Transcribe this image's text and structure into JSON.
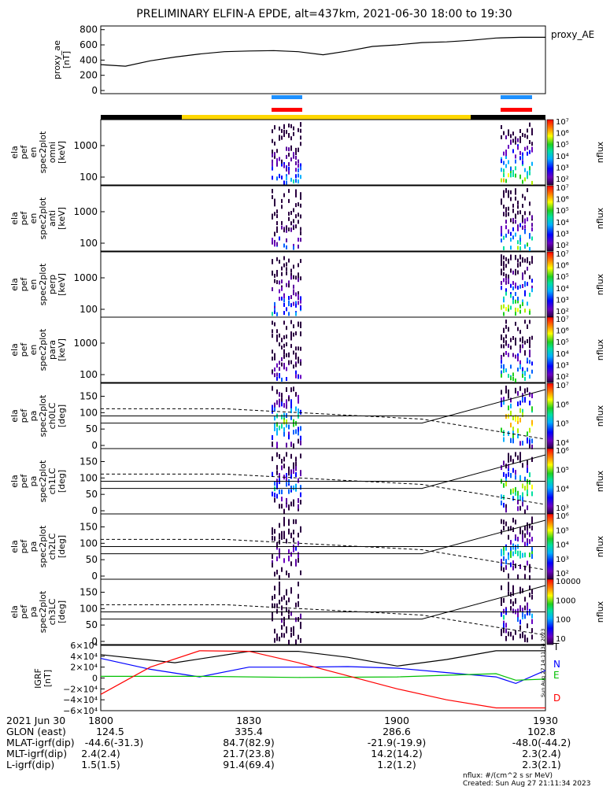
{
  "title": "PRELIMINARY ELFIN-A EPDE, alt=437km, 2021-06-30 18:00 to 19:30",
  "chart_data": [
    {
      "type": "line",
      "panel": "proxy_ae",
      "ylabel_lines": [
        "proxy_ae",
        "[nT]"
      ],
      "legend": "proxy_AE",
      "ylim": [
        0,
        800
      ],
      "yticks": [
        "800",
        "600",
        "400",
        "200",
        "0"
      ],
      "yticks_values": [
        800,
        600,
        400,
        200,
        0
      ],
      "x_minutes": [
        0,
        5,
        10,
        15,
        20,
        25,
        30,
        35,
        40,
        45,
        50,
        55,
        60,
        65,
        70,
        75,
        80,
        85,
        90
      ],
      "values": [
        340,
        320,
        390,
        440,
        480,
        510,
        520,
        525,
        510,
        470,
        520,
        580,
        600,
        630,
        640,
        660,
        690,
        700,
        700
      ]
    },
    {
      "type": "heatmap",
      "panel": "spec2plot_omni",
      "ylabel_lines": [
        "ela",
        "pef",
        "en",
        "spec2plot",
        "omni",
        "[keV]"
      ],
      "yscale": "log",
      "yticks": [
        "1000",
        "100"
      ],
      "colorbar_label": "nflux",
      "colorbar_ticks": [
        "10⁷",
        "10⁶",
        "10⁵",
        "10⁴",
        "10³",
        "10²"
      ]
    },
    {
      "type": "heatmap",
      "panel": "spec2plot_anti",
      "ylabel_lines": [
        "ela",
        "pef",
        "en",
        "spec2plot",
        "anti",
        "[keV]"
      ],
      "yscale": "log",
      "yticks": [
        "1000",
        "100"
      ],
      "colorbar_label": "nflux",
      "colorbar_ticks": [
        "10⁷",
        "10⁶",
        "10⁵",
        "10⁴",
        "10³",
        "10²"
      ]
    },
    {
      "type": "heatmap",
      "panel": "spec2plot_perp",
      "ylabel_lines": [
        "ela",
        "pef",
        "en",
        "spec2plot",
        "perp",
        "[keV]"
      ],
      "yscale": "log",
      "yticks": [
        "1000",
        "100"
      ],
      "colorbar_label": "nflux",
      "colorbar_ticks": [
        "10⁷",
        "10⁶",
        "10⁵",
        "10⁴",
        "10³",
        "10²"
      ]
    },
    {
      "type": "heatmap",
      "panel": "spec2plot_para",
      "ylabel_lines": [
        "ela",
        "pef",
        "en",
        "spec2plot",
        "para",
        "[keV]"
      ],
      "yscale": "log",
      "yticks": [
        "1000",
        "100"
      ],
      "colorbar_label": "nflux",
      "colorbar_ticks": [
        "10⁷",
        "10⁶",
        "10⁵",
        "10⁴",
        "10³",
        "10²"
      ]
    },
    {
      "type": "heatmap",
      "panel": "spec2plot_ch0LC",
      "ylabel_lines": [
        "ela",
        "pef",
        "pa",
        "spec2plot",
        "ch0LC",
        "[deg]"
      ],
      "ylim": [
        0,
        180
      ],
      "yticks": [
        "150",
        "100",
        "50",
        "0"
      ],
      "colorbar_label": "nflux",
      "colorbar_ticks": [
        "10⁷",
        "10⁶",
        "10⁵",
        "10⁴"
      ]
    },
    {
      "type": "heatmap",
      "panel": "spec2plot_ch1LC",
      "ylabel_lines": [
        "ela",
        "pef",
        "pa",
        "spec2plot",
        "ch1LC",
        "[deg]"
      ],
      "ylim": [
        0,
        180
      ],
      "yticks": [
        "150",
        "100",
        "50",
        "0"
      ],
      "colorbar_label": "nflux",
      "colorbar_ticks": [
        "10⁶",
        "10⁵",
        "10⁴",
        "10³"
      ]
    },
    {
      "type": "heatmap",
      "panel": "spec2plot_ch2LC",
      "ylabel_lines": [
        "ela",
        "pef",
        "pa",
        "spec2plot",
        "ch2LC",
        "[deg]"
      ],
      "ylim": [
        0,
        180
      ],
      "yticks": [
        "150",
        "100",
        "50",
        "0"
      ],
      "colorbar_label": "nflux",
      "colorbar_ticks": [
        "10⁶",
        "10⁵",
        "10⁴",
        "10³",
        "10²"
      ]
    },
    {
      "type": "heatmap",
      "panel": "spec2plot_ch3LC",
      "ylabel_lines": [
        "ela",
        "pef",
        "pa",
        "spec2plot",
        "ch3LC",
        "[deg]"
      ],
      "ylim": [
        0,
        180
      ],
      "yticks": [
        "150",
        "100",
        "50",
        "0"
      ],
      "colorbar_label": "nflux",
      "colorbar_ticks": [
        "10000",
        "1000",
        "100",
        "10"
      ]
    },
    {
      "type": "line",
      "panel": "IGRF",
      "ylabel_lines": [
        "IGRF",
        "[nT]"
      ],
      "ylim": [
        -60000,
        60000
      ],
      "yticks": [
        "6×10⁴",
        "4×10⁴",
        "2×10⁴",
        "0",
        "−2×10⁴",
        "−4×10⁴",
        "−6×10⁴"
      ],
      "yticks_values": [
        60000,
        40000,
        20000,
        0,
        -20000,
        -40000,
        -60000
      ],
      "series": [
        {
          "name": "T",
          "color": "#000000",
          "x_minutes": [
            0,
            15,
            30,
            40,
            50,
            60,
            70,
            80,
            90
          ],
          "values": [
            43000,
            28000,
            49000,
            49000,
            38000,
            22000,
            34000,
            50000,
            50000
          ]
        },
        {
          "name": "N",
          "color": "#0000ff",
          "x_minutes": [
            0,
            10,
            20,
            30,
            40,
            50,
            60,
            70,
            80,
            84,
            90
          ],
          "values": [
            36000,
            16000,
            2000,
            20000,
            20000,
            21000,
            18000,
            10000,
            2000,
            -10000,
            14000
          ]
        },
        {
          "name": "E",
          "color": "#00c000",
          "x_minutes": [
            0,
            20,
            40,
            60,
            70,
            80,
            84,
            90
          ],
          "values": [
            3000,
            3000,
            1000,
            2000,
            5000,
            8000,
            -4000,
            -2000
          ]
        },
        {
          "name": "D",
          "color": "#ff0000",
          "x_minutes": [
            0,
            10,
            20,
            30,
            40,
            60,
            70,
            80,
            90
          ],
          "values": [
            -30000,
            20000,
            50000,
            49000,
            28000,
            -20000,
            -40000,
            -55000,
            -55000
          ]
        }
      ]
    }
  ],
  "x_axis": {
    "date": "2021 Jun 30",
    "times": [
      "1800",
      "1830",
      "1900",
      "1930"
    ],
    "rows": [
      {
        "label": "GLON (east)",
        "values": [
          "124.5",
          "335.4",
          "286.6",
          "102.8"
        ]
      },
      {
        "label": "MLAT-igrf(dip)",
        "values": [
          "-44.6(-31.3)",
          "84.7(82.9)",
          "-21.9(-19.9)",
          "-48.0(-44.2)"
        ]
      },
      {
        "label": "MLT-igrf(dip)",
        "values": [
          "2.4(2.4)",
          "21.7(23.8)",
          "14.2(14.2)",
          "2.3(2.4)"
        ]
      },
      {
        "label": "L-igrf(dip)",
        "values": [
          "1.5(1.5)",
          "91.4(69.4)",
          "1.2(1.2)",
          "2.3(2.1)"
        ]
      }
    ]
  },
  "footer": {
    "units": "nflux: #/(cm^2 s sr MeV)",
    "created": "Created: Sun Aug 27 21:11:34 2023",
    "side_stamp": "Sun Aug 27 14:11:34 2023"
  },
  "colors": {
    "bar_black": "#000000",
    "bar_yellow": "#ffd700",
    "marker_blue": "#1e90ff",
    "marker_red": "#ff0000",
    "text": "#000000"
  }
}
